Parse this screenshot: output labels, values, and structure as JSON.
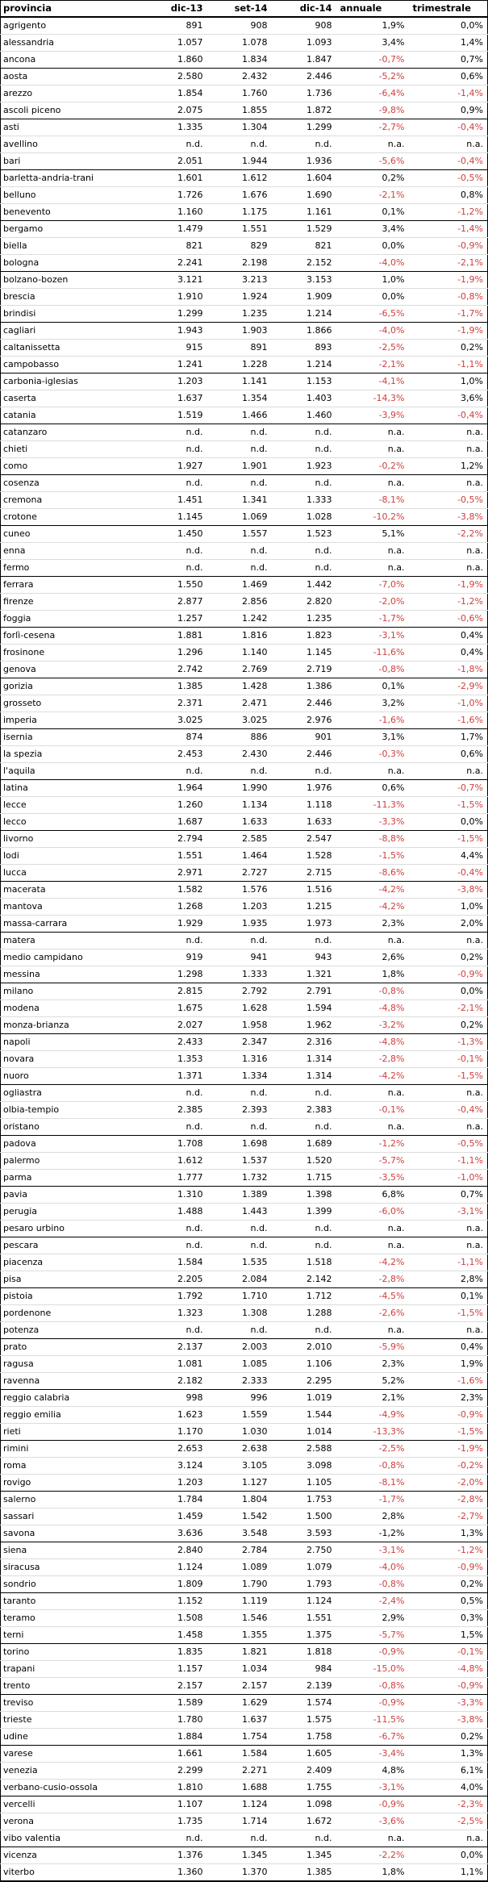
{
  "chart_data": {
    "type": "table",
    "title": "",
    "columns": [
      "provincia",
      "dic-13",
      "set-14",
      "dic-14",
      "annuale",
      "trimestrale"
    ],
    "group_size": 3,
    "colors": {
      "negative_value": "#ce4040",
      "positive_value": "#000000",
      "border": "#000000",
      "row_divider": "#dcdcdc"
    },
    "negative_color_exceptions": [
      {
        "provincia": "savona",
        "column": "annuale"
      }
    ],
    "rows": [
      [
        "agrigento",
        "891",
        "908",
        "908",
        "1,9%",
        "0,0%"
      ],
      [
        "alessandria",
        "1.057",
        "1.078",
        "1.093",
        "3,4%",
        "1,4%"
      ],
      [
        "ancona",
        "1.860",
        "1.834",
        "1.847",
        "-0,7%",
        "0,7%"
      ],
      [
        "aosta",
        "2.580",
        "2.432",
        "2.446",
        "-5,2%",
        "0,6%"
      ],
      [
        "arezzo",
        "1.854",
        "1.760",
        "1.736",
        "-6,4%",
        "-1,4%"
      ],
      [
        "ascoli piceno",
        "2.075",
        "1.855",
        "1.872",
        "-9,8%",
        "0,9%"
      ],
      [
        "asti",
        "1.335",
        "1.304",
        "1.299",
        "-2,7%",
        "-0,4%"
      ],
      [
        "avellino",
        "n.d.",
        "n.d.",
        "n.d.",
        "n.a.",
        "n.a."
      ],
      [
        "bari",
        "2.051",
        "1.944",
        "1.936",
        "-5,6%",
        "-0,4%"
      ],
      [
        "barletta-andria-trani",
        "1.601",
        "1.612",
        "1.604",
        "0,2%",
        "-0,5%"
      ],
      [
        "belluno",
        "1.726",
        "1.676",
        "1.690",
        "-2,1%",
        "0,8%"
      ],
      [
        "benevento",
        "1.160",
        "1.175",
        "1.161",
        "0,1%",
        "-1,2%"
      ],
      [
        "bergamo",
        "1.479",
        "1.551",
        "1.529",
        "3,4%",
        "-1,4%"
      ],
      [
        "biella",
        "821",
        "829",
        "821",
        "0,0%",
        "-0,9%"
      ],
      [
        "bologna",
        "2.241",
        "2.198",
        "2.152",
        "-4,0%",
        "-2,1%"
      ],
      [
        "bolzano-bozen",
        "3.121",
        "3.213",
        "3.153",
        "1,0%",
        "-1,9%"
      ],
      [
        "brescia",
        "1.910",
        "1.924",
        "1.909",
        "0,0%",
        "-0,8%"
      ],
      [
        "brindisi",
        "1.299",
        "1.235",
        "1.214",
        "-6,5%",
        "-1,7%"
      ],
      [
        "cagliari",
        "1.943",
        "1.903",
        "1.866",
        "-4,0%",
        "-1,9%"
      ],
      [
        "caltanissetta",
        "915",
        "891",
        "893",
        "-2,5%",
        "0,2%"
      ],
      [
        "campobasso",
        "1.241",
        "1.228",
        "1.214",
        "-2,1%",
        "-1,1%"
      ],
      [
        "carbonia-iglesias",
        "1.203",
        "1.141",
        "1.153",
        "-4,1%",
        "1,0%"
      ],
      [
        "caserta",
        "1.637",
        "1.354",
        "1.403",
        "-14,3%",
        "3,6%"
      ],
      [
        "catania",
        "1.519",
        "1.466",
        "1.460",
        "-3,9%",
        "-0,4%"
      ],
      [
        "catanzaro",
        "n.d.",
        "n.d.",
        "n.d.",
        "n.a.",
        "n.a."
      ],
      [
        "chieti",
        "n.d.",
        "n.d.",
        "n.d.",
        "n.a.",
        "n.a."
      ],
      [
        "como",
        "1.927",
        "1.901",
        "1.923",
        "-0,2%",
        "1,2%"
      ],
      [
        "cosenza",
        "n.d.",
        "n.d.",
        "n.d.",
        "n.a.",
        "n.a."
      ],
      [
        "cremona",
        "1.451",
        "1.341",
        "1.333",
        "-8,1%",
        "-0,5%"
      ],
      [
        "crotone",
        "1.145",
        "1.069",
        "1.028",
        "-10,2%",
        "-3,8%"
      ],
      [
        "cuneo",
        "1.450",
        "1.557",
        "1.523",
        "5,1%",
        "-2,2%"
      ],
      [
        "enna",
        "n.d.",
        "n.d.",
        "n.d.",
        "n.a.",
        "n.a."
      ],
      [
        "fermo",
        "n.d.",
        "n.d.",
        "n.d.",
        "n.a.",
        "n.a."
      ],
      [
        "ferrara",
        "1.550",
        "1.469",
        "1.442",
        "-7,0%",
        "-1,9%"
      ],
      [
        "firenze",
        "2.877",
        "2.856",
        "2.820",
        "-2,0%",
        "-1,2%"
      ],
      [
        "foggia",
        "1.257",
        "1.242",
        "1.235",
        "-1,7%",
        "-0,6%"
      ],
      [
        "forlì-cesena",
        "1.881",
        "1.816",
        "1.823",
        "-3,1%",
        "0,4%"
      ],
      [
        "frosinone",
        "1.296",
        "1.140",
        "1.145",
        "-11,6%",
        "0,4%"
      ],
      [
        "genova",
        "2.742",
        "2.769",
        "2.719",
        "-0,8%",
        "-1,8%"
      ],
      [
        "gorizia",
        "1.385",
        "1.428",
        "1.386",
        "0,1%",
        "-2,9%"
      ],
      [
        "grosseto",
        "2.371",
        "2.471",
        "2.446",
        "3,2%",
        "-1,0%"
      ],
      [
        "imperia",
        "3.025",
        "3.025",
        "2.976",
        "-1,6%",
        "-1,6%"
      ],
      [
        "isernia",
        "874",
        "886",
        "901",
        "3,1%",
        "1,7%"
      ],
      [
        "la spezia",
        "2.453",
        "2.430",
        "2.446",
        "-0,3%",
        "0,6%"
      ],
      [
        "l'aquila",
        "n.d.",
        "n.d.",
        "n.d.",
        "n.a.",
        "n.a."
      ],
      [
        "latina",
        "1.964",
        "1.990",
        "1.976",
        "0,6%",
        "-0,7%"
      ],
      [
        "lecce",
        "1.260",
        "1.134",
        "1.118",
        "-11,3%",
        "-1,5%"
      ],
      [
        "lecco",
        "1.687",
        "1.633",
        "1.633",
        "-3,3%",
        "0,0%"
      ],
      [
        "livorno",
        "2.794",
        "2.585",
        "2.547",
        "-8,8%",
        "-1,5%"
      ],
      [
        "lodi",
        "1.551",
        "1.464",
        "1.528",
        "-1,5%",
        "4,4%"
      ],
      [
        "lucca",
        "2.971",
        "2.727",
        "2.715",
        "-8,6%",
        "-0,4%"
      ],
      [
        "macerata",
        "1.582",
        "1.576",
        "1.516",
        "-4,2%",
        "-3,8%"
      ],
      [
        "mantova",
        "1.268",
        "1.203",
        "1.215",
        "-4,2%",
        "1,0%"
      ],
      [
        "massa-carrara",
        "1.929",
        "1.935",
        "1.973",
        "2,3%",
        "2,0%"
      ],
      [
        "matera",
        "n.d.",
        "n.d.",
        "n.d.",
        "n.a.",
        "n.a."
      ],
      [
        "medio campidano",
        "919",
        "941",
        "943",
        "2,6%",
        "0,2%"
      ],
      [
        "messina",
        "1.298",
        "1.333",
        "1.321",
        "1,8%",
        "-0,9%"
      ],
      [
        "milano",
        "2.815",
        "2.792",
        "2.791",
        "-0,8%",
        "0,0%"
      ],
      [
        "modena",
        "1.675",
        "1.628",
        "1.594",
        "-4,8%",
        "-2,1%"
      ],
      [
        "monza-brianza",
        "2.027",
        "1.958",
        "1.962",
        "-3,2%",
        "0,2%"
      ],
      [
        "napoli",
        "2.433",
        "2.347",
        "2.316",
        "-4,8%",
        "-1,3%"
      ],
      [
        "novara",
        "1.353",
        "1.316",
        "1.314",
        "-2,8%",
        "-0,1%"
      ],
      [
        "nuoro",
        "1.371",
        "1.334",
        "1.314",
        "-4,2%",
        "-1,5%"
      ],
      [
        "ogliastra",
        "n.d.",
        "n.d.",
        "n.d.",
        "n.a.",
        "n.a."
      ],
      [
        "olbia-tempio",
        "2.385",
        "2.393",
        "2.383",
        "-0,1%",
        "-0,4%"
      ],
      [
        "oristano",
        "n.d.",
        "n.d.",
        "n.d.",
        "n.a.",
        "n.a."
      ],
      [
        "padova",
        "1.708",
        "1.698",
        "1.689",
        "-1,2%",
        "-0,5%"
      ],
      [
        "palermo",
        "1.612",
        "1.537",
        "1.520",
        "-5,7%",
        "-1,1%"
      ],
      [
        "parma",
        "1.777",
        "1.732",
        "1.715",
        "-3,5%",
        "-1,0%"
      ],
      [
        "pavia",
        "1.310",
        "1.389",
        "1.398",
        "6,8%",
        "0,7%"
      ],
      [
        "perugia",
        "1.488",
        "1.443",
        "1.399",
        "-6,0%",
        "-3,1%"
      ],
      [
        "pesaro urbino",
        "n.d.",
        "n.d.",
        "n.d.",
        "n.a.",
        "n.a."
      ],
      [
        "pescara",
        "n.d.",
        "n.d.",
        "n.d.",
        "n.a.",
        "n.a."
      ],
      [
        "piacenza",
        "1.584",
        "1.535",
        "1.518",
        "-4,2%",
        "-1,1%"
      ],
      [
        "pisa",
        "2.205",
        "2.084",
        "2.142",
        "-2,8%",
        "2,8%"
      ],
      [
        "pistoia",
        "1.792",
        "1.710",
        "1.712",
        "-4,5%",
        "0,1%"
      ],
      [
        "pordenone",
        "1.323",
        "1.308",
        "1.288",
        "-2,6%",
        "-1,5%"
      ],
      [
        "potenza",
        "n.d.",
        "n.d.",
        "n.d.",
        "n.a.",
        "n.a."
      ],
      [
        "prato",
        "2.137",
        "2.003",
        "2.010",
        "-5,9%",
        "0,4%"
      ],
      [
        "ragusa",
        "1.081",
        "1.085",
        "1.106",
        "2,3%",
        "1,9%"
      ],
      [
        "ravenna",
        "2.182",
        "2.333",
        "2.295",
        "5,2%",
        "-1,6%"
      ],
      [
        "reggio calabria",
        "998",
        "996",
        "1.019",
        "2,1%",
        "2,3%"
      ],
      [
        "reggio emilia",
        "1.623",
        "1.559",
        "1.544",
        "-4,9%",
        "-0,9%"
      ],
      [
        "rieti",
        "1.170",
        "1.030",
        "1.014",
        "-13,3%",
        "-1,5%"
      ],
      [
        "rimini",
        "2.653",
        "2.638",
        "2.588",
        "-2,5%",
        "-1,9%"
      ],
      [
        "roma",
        "3.124",
        "3.105",
        "3.098",
        "-0,8%",
        "-0,2%"
      ],
      [
        "rovigo",
        "1.203",
        "1.127",
        "1.105",
        "-8,1%",
        "-2,0%"
      ],
      [
        "salerno",
        "1.784",
        "1.804",
        "1.753",
        "-1,7%",
        "-2,8%"
      ],
      [
        "sassari",
        "1.459",
        "1.542",
        "1.500",
        "2,8%",
        "-2,7%"
      ],
      [
        "savona",
        "3.636",
        "3.548",
        "3.593",
        "-1,2%",
        "1,3%"
      ],
      [
        "siena",
        "2.840",
        "2.784",
        "2.750",
        "-3,1%",
        "-1,2%"
      ],
      [
        "siracusa",
        "1.124",
        "1.089",
        "1.079",
        "-4,0%",
        "-0,9%"
      ],
      [
        "sondrio",
        "1.809",
        "1.790",
        "1.793",
        "-0,8%",
        "0,2%"
      ],
      [
        "taranto",
        "1.152",
        "1.119",
        "1.124",
        "-2,4%",
        "0,5%"
      ],
      [
        "teramo",
        "1.508",
        "1.546",
        "1.551",
        "2,9%",
        "0,3%"
      ],
      [
        "terni",
        "1.458",
        "1.355",
        "1.375",
        "-5,7%",
        "1,5%"
      ],
      [
        "torino",
        "1.835",
        "1.821",
        "1.818",
        "-0,9%",
        "-0,1%"
      ],
      [
        "trapani",
        "1.157",
        "1.034",
        "984",
        "-15,0%",
        "-4,8%"
      ],
      [
        "trento",
        "2.157",
        "2.157",
        "2.139",
        "-0,8%",
        "-0,9%"
      ],
      [
        "treviso",
        "1.589",
        "1.629",
        "1.574",
        "-0,9%",
        "-3,3%"
      ],
      [
        "trieste",
        "1.780",
        "1.637",
        "1.575",
        "-11,5%",
        "-3,8%"
      ],
      [
        "udine",
        "1.884",
        "1.754",
        "1.758",
        "-6,7%",
        "0,2%"
      ],
      [
        "varese",
        "1.661",
        "1.584",
        "1.605",
        "-3,4%",
        "1,3%"
      ],
      [
        "venezia",
        "2.299",
        "2.271",
        "2.409",
        "4,8%",
        "6,1%"
      ],
      [
        "verbano-cusio-ossola",
        "1.810",
        "1.688",
        "1.755",
        "-3,1%",
        "4,0%"
      ],
      [
        "vercelli",
        "1.107",
        "1.124",
        "1.098",
        "-0,9%",
        "-2,3%"
      ],
      [
        "verona",
        "1.735",
        "1.714",
        "1.672",
        "-3,6%",
        "-2,5%"
      ],
      [
        "vibo valentia",
        "n.d.",
        "n.d.",
        "n.d.",
        "n.a.",
        "n.a."
      ],
      [
        "vicenza",
        "1.376",
        "1.345",
        "1.345",
        "-2,2%",
        "0,0%"
      ],
      [
        "viterbo",
        "1.360",
        "1.370",
        "1.385",
        "1,8%",
        "1,1%"
      ]
    ]
  }
}
